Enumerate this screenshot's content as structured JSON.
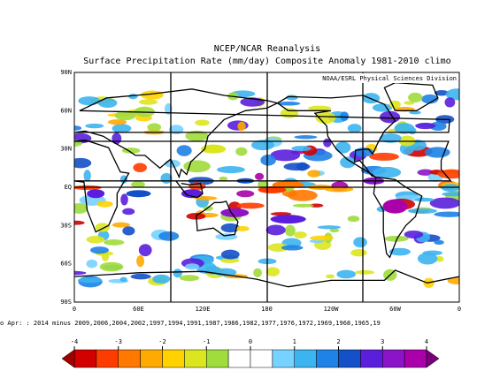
{
  "header": {
    "title": "NCEP/NCAR Reanalysis",
    "subtitle": "Surface Precipitation Rate (mm/day) Composite Anomaly 1981-2010 climo"
  },
  "map": {
    "credit": "NOAA/ESRL Physical Sciences Division",
    "lat_labels": [
      "90N",
      "60N",
      "30N",
      "EQ",
      "30S",
      "60S",
      "90S"
    ],
    "lon_labels": [
      "0",
      "60E",
      "120E",
      "180",
      "120W",
      "60W",
      "0"
    ],
    "caption": "o Apr: : 2014 minus 2009,2006,2004,2002,1997,1994,1991,1987,1986,1982,1977,1976,1972,1969,1968,1965,19"
  },
  "colorbar": {
    "lim": [
      -4,
      4
    ],
    "ticks": [
      -4,
      -3,
      -2,
      -1,
      0,
      1,
      2,
      3,
      4
    ],
    "under_color": "#a00000",
    "over_color": "#780078",
    "colors": [
      "#d20000",
      "#ff3c00",
      "#ff7800",
      "#ffaa00",
      "#ffd200",
      "#dce61e",
      "#a0dc3c",
      "#ffffff",
      "#ffffff",
      "#78d2ff",
      "#3cb4f0",
      "#1e82e6",
      "#1450c8",
      "#5a1edc",
      "#8c14c8",
      "#aa00aa"
    ]
  }
}
